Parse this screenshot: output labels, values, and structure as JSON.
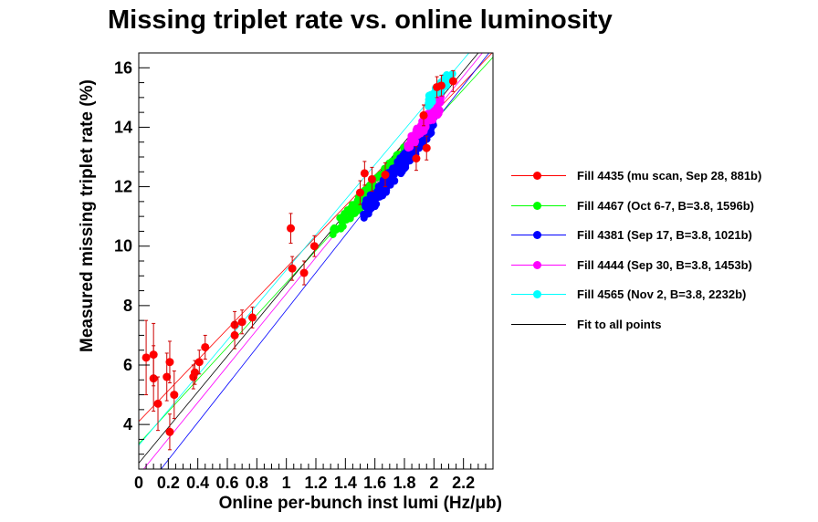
{
  "chart_data": {
    "type": "scatter",
    "title": "Missing triplet rate vs. online luminosity",
    "xlabel": "Online per-bunch inst lumi (Hz/μb)",
    "ylabel": "Measured missing triplet rate (%)",
    "xlim": [
      0,
      2.4
    ],
    "ylim": [
      2.5,
      16.5
    ],
    "x_ticks": [
      "0",
      "0.2",
      "0.4",
      "0.6",
      "0.8",
      "1",
      "1.2",
      "1.4",
      "1.6",
      "1.8",
      "2",
      "2.2"
    ],
    "y_ticks": [
      "4",
      "6",
      "8",
      "10",
      "12",
      "14",
      "16"
    ],
    "legend_position": "right",
    "grid": false,
    "series": [
      {
        "name": "Fill 4435 (mu scan, Sep 28, 881b)",
        "color": "#ff0000",
        "kind": "points",
        "points": [
          {
            "x": 0.05,
            "y": 6.25,
            "err": 1.25
          },
          {
            "x": 0.1,
            "y": 5.55,
            "err": 1.1
          },
          {
            "x": 0.1,
            "y": 6.35,
            "err": 1.05
          },
          {
            "x": 0.13,
            "y": 4.7,
            "err": 0.9
          },
          {
            "x": 0.19,
            "y": 5.6,
            "err": 0.8
          },
          {
            "x": 0.21,
            "y": 6.1,
            "err": 0.7
          },
          {
            "x": 0.21,
            "y": 3.75,
            "err": 0.6
          },
          {
            "x": 0.24,
            "y": 5.0,
            "err": 0.8
          },
          {
            "x": 0.37,
            "y": 5.6,
            "err": 0.4
          },
          {
            "x": 0.38,
            "y": 5.75,
            "err": 0.4
          },
          {
            "x": 0.41,
            "y": 6.1,
            "err": 0.4
          },
          {
            "x": 0.45,
            "y": 6.6,
            "err": 0.4
          },
          {
            "x": 0.65,
            "y": 7.35,
            "err": 0.45
          },
          {
            "x": 0.65,
            "y": 7.0,
            "err": 0.45
          },
          {
            "x": 0.7,
            "y": 7.45,
            "err": 0.4
          },
          {
            "x": 0.77,
            "y": 7.6,
            "err": 0.35
          },
          {
            "x": 1.03,
            "y": 10.6,
            "err": 0.5
          },
          {
            "x": 1.04,
            "y": 9.25,
            "err": 0.4
          },
          {
            "x": 1.12,
            "y": 9.1,
            "err": 0.4
          },
          {
            "x": 1.19,
            "y": 10.0,
            "err": 0.35
          },
          {
            "x": 1.5,
            "y": 11.8,
            "err": 0.4
          },
          {
            "x": 1.53,
            "y": 12.45,
            "err": 0.4
          },
          {
            "x": 1.58,
            "y": 12.25,
            "err": 0.4
          },
          {
            "x": 1.67,
            "y": 12.4,
            "err": 0.4
          },
          {
            "x": 1.88,
            "y": 12.95,
            "err": 0.4
          },
          {
            "x": 1.93,
            "y": 14.4,
            "err": 0.35
          },
          {
            "x": 1.95,
            "y": 13.3,
            "err": 0.4
          },
          {
            "x": 2.02,
            "y": 15.35,
            "err": 0.35
          },
          {
            "x": 2.05,
            "y": 15.4,
            "err": 0.35
          },
          {
            "x": 2.13,
            "y": 15.55,
            "err": 0.35
          }
        ]
      },
      {
        "name": "Fill 4467 (Oct 6-7, B=3.8, 1596b)",
        "color": "#00ff00",
        "kind": "band",
        "x_range": [
          1.31,
          1.92
        ],
        "trend": {
          "slope": 5.42,
          "intercept": 3.35
        },
        "spread": 0.25,
        "count": 130
      },
      {
        "name": "Fill 4381 (Sep 17, B=3.8, 1021b)",
        "color": "#0000ff",
        "kind": "band",
        "x_range": [
          1.52,
          2.0
        ],
        "trend": {
          "slope": 6.3,
          "intercept": 1.55
        },
        "spread": 0.3,
        "count": 160
      },
      {
        "name": "Fill 4444 (Sep 30, B=3.8, 1453b)",
        "color": "#ff00ff",
        "kind": "band",
        "x_range": [
          1.82,
          2.05
        ],
        "trend": {
          "slope": 6.1,
          "intercept": 2.3
        },
        "spread": 0.25,
        "count": 80
      },
      {
        "name": "Fill 4565 (Nov 2, B=3.8, 2232b)",
        "color": "#00ffff",
        "kind": "band",
        "x_range": [
          1.96,
          2.13
        ],
        "trend": {
          "slope": 5.9,
          "intercept": 3.3
        },
        "spread": 0.2,
        "count": 50
      },
      {
        "name": "Fit to all points",
        "color": "#000000",
        "kind": "none"
      }
    ],
    "fit_lines": [
      {
        "color": "#ff0000",
        "slope": 5.18,
        "intercept": 4.1
      },
      {
        "color": "#00ff00",
        "slope": 5.42,
        "intercept": 3.35
      },
      {
        "color": "#00ffff",
        "slope": 5.9,
        "intercept": 3.3
      },
      {
        "color": "#000000",
        "slope": 6.0,
        "intercept": 2.7
      },
      {
        "color": "#ff00ff",
        "slope": 6.1,
        "intercept": 2.3
      },
      {
        "color": "#0000ff",
        "slope": 6.3,
        "intercept": 1.55
      }
    ]
  }
}
